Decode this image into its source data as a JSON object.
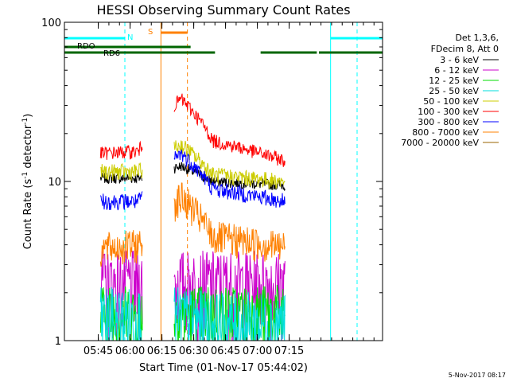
{
  "chart_data": {
    "type": "line",
    "title": "HESSI Observing Summary Count Rates",
    "xlabel": "Start Time (01-Nov-17 05:44:02)",
    "ylabel_main": "Count Rate (s",
    "ylabel_sup1": "-1",
    "ylabel_mid": " detector",
    "ylabel_sup2": "-1",
    "ylabel_end": ")",
    "y_scale": "log",
    "ylim": [
      1,
      100
    ],
    "xlim_minutes": [
      -15.0,
      135.0
    ],
    "x_ticks": [
      {
        "min": 0.97,
        "label": "05:45"
      },
      {
        "min": 15.97,
        "label": "06:00"
      },
      {
        "min": 30.97,
        "label": "06:15"
      },
      {
        "min": 45.97,
        "label": "06:30"
      },
      {
        "min": 60.97,
        "label": "06:45"
      },
      {
        "min": 75.97,
        "label": "07:00"
      },
      {
        "min": 90.97,
        "label": "07:15"
      }
    ],
    "y_ticks": [
      {
        "value": 1,
        "label": "1"
      },
      {
        "value": 10,
        "label": "10"
      },
      {
        "value": 100,
        "label": "100"
      }
    ],
    "legend_title_1": "Det 1,3,6,",
    "legend_title_2": "FDecim 8, Att 0",
    "legend_placement": "right",
    "data_gaps_minutes": [
      [
        22.0,
        36.5
      ],
      [
        89.5,
        135.0
      ]
    ],
    "series": [
      {
        "name": "3 - 6 keV",
        "color": "#000000",
        "levels": [
          10.5,
          10.5,
          12.5,
          10.0,
          9.5
        ]
      },
      {
        "name": "6 - 12 keV",
        "color": "#cc00cc",
        "levels": [
          2.3,
          2.3,
          2.3,
          2.3,
          2.3
        ]
      },
      {
        "name": "12 - 25 keV",
        "color": "#00dd00",
        "levels": [
          1.5,
          1.5,
          1.5,
          1.5,
          1.5
        ]
      },
      {
        "name": "25 - 50 keV",
        "color": "#00dddd",
        "levels": [
          1.4,
          1.4,
          1.4,
          1.3,
          1.3
        ]
      },
      {
        "name": "50 - 100 keV",
        "color": "#cccc00",
        "levels": [
          11.5,
          11.5,
          17.0,
          11.0,
          10.0
        ]
      },
      {
        "name": "100 - 300 keV",
        "color": "#ff0000",
        "levels": [
          15.0,
          15.5,
          33.0,
          18.0,
          13.5
        ]
      },
      {
        "name": "300 - 800 keV",
        "color": "#0000ff",
        "levels": [
          7.5,
          7.5,
          15.0,
          9.0,
          7.5
        ]
      },
      {
        "name": "800 - 7000 keV",
        "color": "#ff8000",
        "levels": [
          3.8,
          4.0,
          8.0,
          4.5,
          3.9
        ]
      },
      {
        "name": "7000 - 20000 keV",
        "color": "#996600",
        "levels": []
      }
    ],
    "level_times_minutes": [
      2.0,
      20.0,
      40.0,
      55.0,
      89.0
    ],
    "flags": [
      {
        "label": "N",
        "color": "#00ffff",
        "segments": [
          [
            -15,
            13.5
          ],
          [
            110.5,
            135
          ]
        ],
        "level": "top"
      },
      {
        "label": "S",
        "color": "#ff8000",
        "segments": [
          [
            30.5,
            43.0
          ]
        ],
        "level": "top2"
      },
      {
        "label": "RDO",
        "color": "#006600",
        "segments": [
          [
            -15,
            44.5
          ]
        ],
        "level": "rdo"
      },
      {
        "label": "RD6",
        "color": "#006600",
        "segments": [
          [
            -15,
            56.0
          ],
          [
            77.5,
            104.0
          ],
          [
            105.0,
            135.0
          ]
        ],
        "level": "rd6"
      }
    ],
    "vertical_markers": [
      {
        "minute": 13.5,
        "color": "#00ffff",
        "style": "dashed"
      },
      {
        "minute": 30.5,
        "color": "#ff8000",
        "style": "solid"
      },
      {
        "minute": 43.0,
        "color": "#ff8000",
        "style": "dashed"
      },
      {
        "minute": 110.5,
        "color": "#00ffff",
        "style": "solid"
      },
      {
        "minute": 123.0,
        "color": "#00ffff",
        "style": "dashed"
      }
    ]
  },
  "footer_date": "5-Nov-2017 08:17"
}
